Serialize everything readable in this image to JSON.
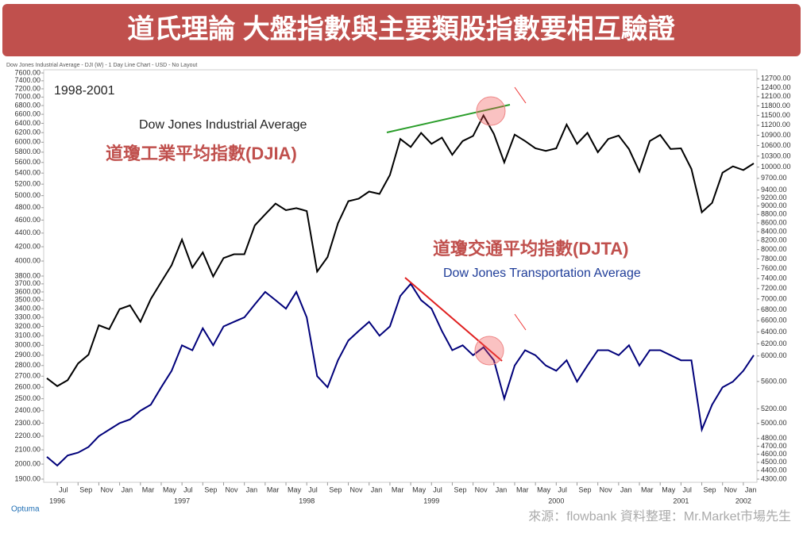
{
  "chart_data": {
    "type": "line",
    "title": "道氏理論 大盤指數與主要類股指數要相互驗證",
    "header": "Dow Jones Industrial Average - DJI (W) - 1 Day Line Chart - USD - No Layout",
    "period": "1998-2001",
    "annotations": [
      "Dow Jones Industrial Average",
      "道瓊工業平均指數(DJIA)",
      "道瓊交通平均指數(DJTA)",
      "Dow Jones Transportation Average"
    ],
    "source": "來源：flowbank  資料整理：Mr.Market市場先生",
    "brand": "Optuma",
    "log_scale": true,
    "x": [
      "1996-06",
      "1996-07",
      "1996-08",
      "1996-09",
      "1996-10",
      "1996-11",
      "1996-12",
      "1997-01",
      "1997-02",
      "1997-03",
      "1997-04",
      "1997-05",
      "1997-06",
      "1997-07",
      "1997-08",
      "1997-09",
      "1997-10",
      "1997-11",
      "1997-12",
      "1998-01",
      "1998-02",
      "1998-03",
      "1998-04",
      "1998-05",
      "1998-06",
      "1998-07",
      "1998-08",
      "1998-09",
      "1998-10",
      "1998-11",
      "1998-12",
      "1999-01",
      "1999-02",
      "1999-03",
      "1999-04",
      "1999-05",
      "1999-06",
      "1999-07",
      "1999-08",
      "1999-09",
      "1999-10",
      "1999-11",
      "1999-12",
      "2000-01",
      "2000-02",
      "2000-03",
      "2000-04",
      "2000-05",
      "2000-06",
      "2000-07",
      "2000-08",
      "2000-09",
      "2000-10",
      "2000-11",
      "2000-12",
      "2001-01",
      "2001-02",
      "2001-03",
      "2001-04",
      "2001-05",
      "2001-06",
      "2001-07",
      "2001-08",
      "2001-09",
      "2001-10",
      "2001-11",
      "2001-12",
      "2002-01",
      "2002-02"
    ],
    "series": [
      {
        "name": "Dow Jones Industrial Average",
        "color": "#000000",
        "axis": "y2",
        "values": [
          5650,
          5530,
          5620,
          5880,
          6020,
          6520,
          6450,
          6810,
          6880,
          6580,
          7000,
          7330,
          7670,
          8220,
          7620,
          7940,
          7440,
          7820,
          7900,
          7900,
          8540,
          8800,
          9060,
          8900,
          8950,
          8880,
          7540,
          7840,
          8590,
          9120,
          9180,
          9360,
          9300,
          9790,
          10790,
          10560,
          10970,
          10650,
          10830,
          10340,
          10730,
          10880,
          11500,
          10940,
          10130,
          10920,
          10730,
          10520,
          10450,
          10520,
          11220,
          10650,
          10970,
          10410,
          10790,
          10890,
          10500,
          9880,
          10730,
          10910,
          10500,
          10520,
          9950,
          8850,
          9080,
          9850,
          10020,
          9920,
          10100
        ]
      },
      {
        "name": "Dow Jones Transportation Average",
        "color": "#00007a",
        "values": [
          2050,
          1990,
          2060,
          2080,
          2120,
          2200,
          2250,
          2300,
          2330,
          2400,
          2450,
          2600,
          2750,
          3000,
          2950,
          3180,
          3000,
          3200,
          3250,
          3300,
          3450,
          3600,
          3500,
          3400,
          3600,
          3300,
          2700,
          2600,
          2850,
          3050,
          3150,
          3250,
          3100,
          3200,
          3550,
          3700,
          3500,
          3400,
          3150,
          2950,
          3000,
          2900,
          2980,
          2850,
          2500,
          2800,
          2950,
          2900,
          2800,
          2750,
          2850,
          2650,
          2800,
          2950,
          2950,
          2900,
          3000,
          2800,
          2950,
          2950,
          2900,
          2850,
          2850,
          2250,
          2450,
          2600,
          2650,
          2750,
          2900
        ]
      }
    ],
    "xlim": [
      "1996-06",
      "2002-02"
    ],
    "xticks": [
      {
        "value": "1996-07",
        "label": "Jul"
      },
      {
        "value": "1996-09",
        "label": "Sep"
      },
      {
        "value": "1996-11",
        "label": "Nov"
      },
      {
        "value": "1997-01",
        "label": "Jan"
      },
      {
        "value": "1997-03",
        "label": "Mar"
      },
      {
        "value": "1997-05",
        "label": "May"
      },
      {
        "value": "1997-07",
        "label": "Jul"
      },
      {
        "value": "1997-09",
        "label": "Sep"
      },
      {
        "value": "1997-11",
        "label": "Nov"
      },
      {
        "value": "1998-01",
        "label": "Jan"
      },
      {
        "value": "1998-03",
        "label": "Mar"
      },
      {
        "value": "1998-05",
        "label": "May"
      },
      {
        "value": "1998-07",
        "label": "Jul"
      },
      {
        "value": "1998-09",
        "label": "Sep"
      },
      {
        "value": "1998-11",
        "label": "Nov"
      },
      {
        "value": "1999-01",
        "label": "Jan"
      },
      {
        "value": "1999-03",
        "label": "Mar"
      },
      {
        "value": "1999-05",
        "label": "May"
      },
      {
        "value": "1999-07",
        "label": "Jul"
      },
      {
        "value": "1999-09",
        "label": "Sep"
      },
      {
        "value": "1999-11",
        "label": "Nov"
      },
      {
        "value": "2000-01",
        "label": "Jan"
      },
      {
        "value": "2000-03",
        "label": "Mar"
      },
      {
        "value": "2000-05",
        "label": "May"
      },
      {
        "value": "2000-07",
        "label": "Jul"
      },
      {
        "value": "2000-09",
        "label": "Sep"
      },
      {
        "value": "2000-11",
        "label": "Nov"
      },
      {
        "value": "2001-01",
        "label": "Jan"
      },
      {
        "value": "2001-03",
        "label": "Mar"
      },
      {
        "value": "2001-05",
        "label": "May"
      },
      {
        "value": "2001-07",
        "label": "Jul"
      },
      {
        "value": "2001-09",
        "label": "Sep"
      },
      {
        "value": "2001-11",
        "label": "Nov"
      },
      {
        "value": "2002-01",
        "label": "Jan"
      }
    ],
    "year_ticks": [
      {
        "value": "1996-07",
        "label": "1996"
      },
      {
        "value": "1997-07",
        "label": "1997"
      },
      {
        "value": "1998-07",
        "label": "1998"
      },
      {
        "value": "1999-07",
        "label": "1999"
      },
      {
        "value": "2000-07",
        "label": "2000"
      },
      {
        "value": "2001-07",
        "label": "2001"
      },
      {
        "value": "2002-01",
        "label": "2002"
      }
    ],
    "ylim": [
      1900,
      7600
    ],
    "yticks": [
      {
        "value": 1900,
        "label": "1900.00"
      },
      {
        "value": 2000,
        "label": "2000.00"
      },
      {
        "value": 2100,
        "label": "2100.00"
      },
      {
        "value": 2200,
        "label": "2200.00"
      },
      {
        "value": 2300,
        "label": "2300.00"
      },
      {
        "value": 2400,
        "label": "2400.00"
      },
      {
        "value": 2500,
        "label": "2500.00"
      },
      {
        "value": 2600,
        "label": "2600.00"
      },
      {
        "value": 2700,
        "label": "2700.00"
      },
      {
        "value": 2800,
        "label": "2800.00"
      },
      {
        "value": 2900,
        "label": "2900.00"
      },
      {
        "value": 3000,
        "label": "3000.00"
      },
      {
        "value": 3100,
        "label": "3100.00"
      },
      {
        "value": 3200,
        "label": "3200.00"
      },
      {
        "value": 3300,
        "label": "3300.00"
      },
      {
        "value": 3400,
        "label": "3400.00"
      },
      {
        "value": 3500,
        "label": "3500.00"
      },
      {
        "value": 3600,
        "label": "3600.00"
      },
      {
        "value": 3700,
        "label": "3700.00"
      },
      {
        "value": 3800,
        "label": "3800.00"
      },
      {
        "value": 4000,
        "label": "4000.00"
      },
      {
        "value": 4200,
        "label": "4200.00"
      },
      {
        "value": 4400,
        "label": "4400.00"
      },
      {
        "value": 4600,
        "label": "4600.00"
      },
      {
        "value": 4800,
        "label": "4800.00"
      },
      {
        "value": 5000,
        "label": "5000.00"
      },
      {
        "value": 5200,
        "label": "5200.00"
      },
      {
        "value": 5400,
        "label": "5400.00"
      },
      {
        "value": 5600,
        "label": "5600.00"
      },
      {
        "value": 5800,
        "label": "5800.00"
      },
      {
        "value": 6000,
        "label": "6000.00"
      },
      {
        "value": 6200,
        "label": "6200.00"
      },
      {
        "value": 6400,
        "label": "6400.00"
      },
      {
        "value": 6600,
        "label": "6600.00"
      },
      {
        "value": 6800,
        "label": "6800.00"
      },
      {
        "value": 7000,
        "label": "7000.00"
      },
      {
        "value": 7200,
        "label": "7200.00"
      },
      {
        "value": 7400,
        "label": "7400.00"
      },
      {
        "value": 7600,
        "label": "7600.00"
      }
    ],
    "y2lim": [
      4300,
      12900
    ],
    "y2ticks": [
      {
        "value": 4300,
        "label": "4300.00"
      },
      {
        "value": 4400,
        "label": "4400.00"
      },
      {
        "value": 4500,
        "label": "4500.00"
      },
      {
        "value": 4600,
        "label": "4600.00"
      },
      {
        "value": 4700,
        "label": "4700.00"
      },
      {
        "value": 4800,
        "label": "4800.00"
      },
      {
        "value": 5000,
        "label": "5000.00"
      },
      {
        "value": 5200,
        "label": "5200.00"
      },
      {
        "value": 5600,
        "label": "5600.00"
      },
      {
        "value": 6000,
        "label": "6000.00"
      },
      {
        "value": 6200,
        "label": "6200.00"
      },
      {
        "value": 6400,
        "label": "6400.00"
      },
      {
        "value": 6600,
        "label": "6600.00"
      },
      {
        "value": 6800,
        "label": "6800.00"
      },
      {
        "value": 7000,
        "label": "7000.00"
      },
      {
        "value": 7200,
        "label": "7200.00"
      },
      {
        "value": 7400,
        "label": "7400.00"
      },
      {
        "value": 7600,
        "label": "7600.00"
      },
      {
        "value": 7800,
        "label": "7800.00"
      },
      {
        "value": 8000,
        "label": "8000.00"
      },
      {
        "value": 8200,
        "label": "8200.00"
      },
      {
        "value": 8400,
        "label": "8400.00"
      },
      {
        "value": 8600,
        "label": "8600.00"
      },
      {
        "value": 8800,
        "label": "8800.00"
      },
      {
        "value": 9000,
        "label": "9000.00"
      },
      {
        "value": 9200,
        "label": "9200.00"
      },
      {
        "value": 9400,
        "label": "9400.00"
      },
      {
        "value": 9700,
        "label": "9700.00"
      },
      {
        "value": 10000,
        "label": "10000.00"
      },
      {
        "value": 10300,
        "label": "10300.00"
      },
      {
        "value": 10600,
        "label": "10600.00"
      },
      {
        "value": 10900,
        "label": "10900.00"
      },
      {
        "value": 11200,
        "label": "11200.00"
      },
      {
        "value": 11500,
        "label": "11500.00"
      },
      {
        "value": 11800,
        "label": "11800.00"
      },
      {
        "value": 12100,
        "label": "12100.00"
      },
      {
        "value": 12400,
        "label": "12400.00"
      },
      {
        "value": 12700,
        "label": "12700.00"
      }
    ]
  }
}
